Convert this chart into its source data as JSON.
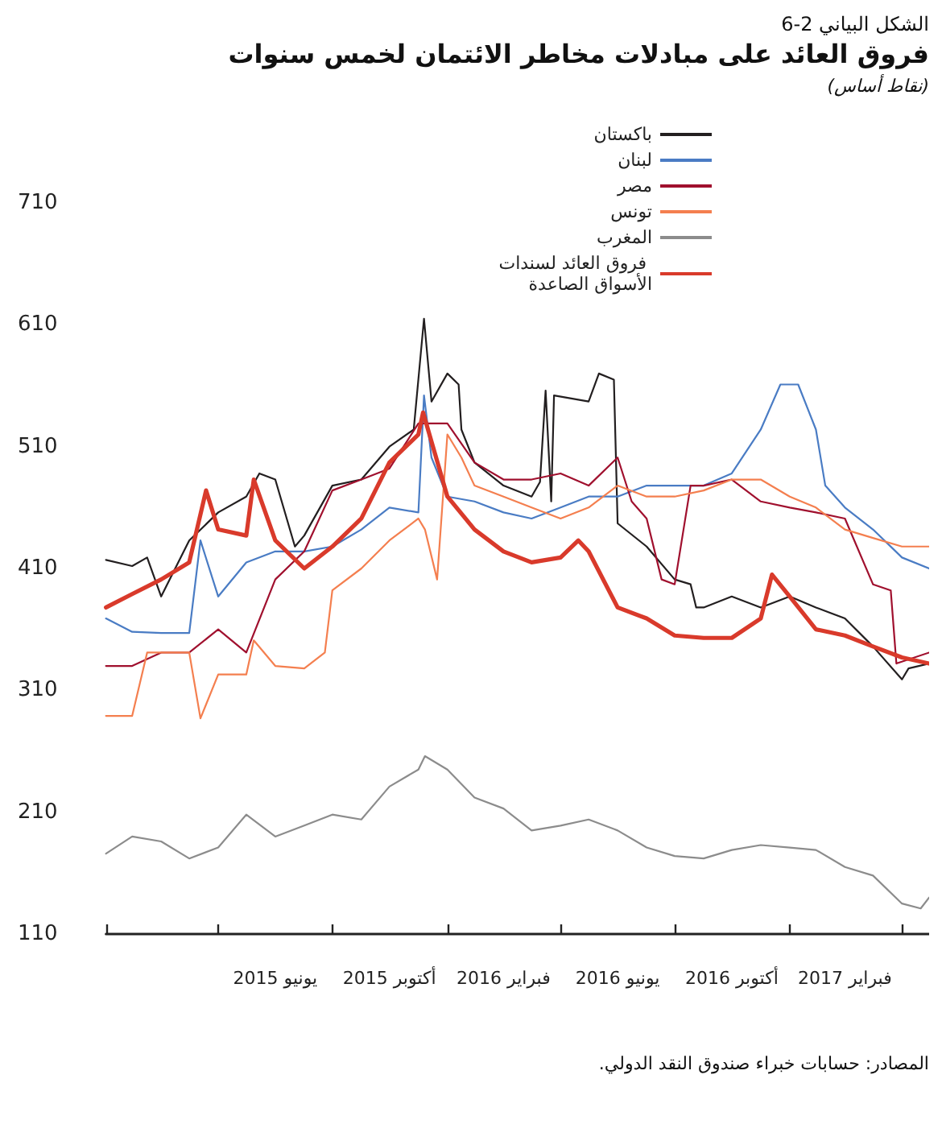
{
  "chart_data": {
    "type": "line",
    "title": "فروق العائد على مبادلات مخاطر الائتمان لخمس سنوات",
    "subtitle": "الشكل البياني 2-6",
    "annotations": [
      "(نقاط أساس)",
      "المصادر: حسابات خبراء صندوق النقد الدولي."
    ],
    "xlim": [
      "2015-02-01",
      "2017-06-30"
    ],
    "xticks": [
      {
        "value": "2015-02-01",
        "label": null
      },
      {
        "value": "2015-06-01",
        "label": null
      },
      {
        "value": "2015-10-01",
        "label": null
      },
      {
        "value": "2016-02-01",
        "label": null
      },
      {
        "value": "2016-06-01",
        "label": null
      },
      {
        "value": "2016-10-01",
        "label": null
      },
      {
        "value": "2017-02-01",
        "label": null
      },
      {
        "value": "2017-06-01",
        "label": null
      },
      {
        "value": "2015-08-01",
        "label": "يونيو 2015"
      },
      {
        "value": "2015-12-01",
        "label": "أكتوبر 2015"
      },
      {
        "value": "2016-04-01",
        "label": "فبراير 2016"
      },
      {
        "value": "2016-08-01",
        "label": "يونيو 2016"
      },
      {
        "value": "2016-12-01",
        "label": "أكتوبر 2016"
      },
      {
        "value": "2017-04-01",
        "label": "فبراير 2017"
      }
    ],
    "ylim": [
      110,
      710
    ],
    "yticks": [
      110,
      210,
      310,
      410,
      510,
      610,
      710
    ],
    "grid": false,
    "legend": "top",
    "marker": "none",
    "line_style": "solid",
    "series": [
      {
        "name": "باكستان",
        "color": "#231f20",
        "x": [
          "2015-02-01",
          "2015-03-01",
          "2015-03-17",
          "2015-04-01",
          "2015-05-01",
          "2015-06-01",
          "2015-07-01",
          "2015-07-15",
          "2015-08-01",
          "2015-08-22",
          "2015-09-01",
          "2015-10-01",
          "2015-11-01",
          "2015-12-01",
          "2015-12-27",
          "2016-01-07",
          "2016-01-15",
          "2016-02-01",
          "2016-02-13",
          "2016-02-16",
          "2016-03-01",
          "2016-04-01",
          "2016-05-01",
          "2016-05-10",
          "2016-05-16",
          "2016-05-22",
          "2016-05-25",
          "2016-07-01",
          "2016-07-12",
          "2016-07-28",
          "2016-08-01",
          "2016-09-01",
          "2016-10-01",
          "2016-10-18",
          "2016-10-24",
          "2016-11-01",
          "2016-12-01",
          "2017-01-01",
          "2017-02-01",
          "2017-03-01",
          "2017-04-01",
          "2017-05-01",
          "2017-06-01",
          "2017-06-08",
          "2017-06-30"
        ],
        "values": [
          417,
          412,
          419,
          387,
          433,
          456,
          469,
          488,
          483,
          428,
          437,
          478,
          483,
          510,
          524,
          615,
          547,
          570,
          561,
          524,
          497,
          478,
          469,
          481,
          556,
          465,
          552,
          547,
          570,
          565,
          447,
          428,
          401,
          397,
          378,
          378,
          387,
          378,
          387,
          378,
          369,
          346,
          319,
          328,
          332
        ]
      },
      {
        "name": "لبنان",
        "color": "#4a7cc4",
        "x": [
          "2015-02-01",
          "2015-03-01",
          "2015-04-01",
          "2015-05-01",
          "2015-05-13",
          "2015-06-01",
          "2015-07-01",
          "2015-08-01",
          "2015-09-01",
          "2015-10-01",
          "2015-11-01",
          "2015-12-01",
          "2016-01-01",
          "2016-01-07",
          "2016-01-15",
          "2016-02-01",
          "2016-03-01",
          "2016-04-01",
          "2016-05-01",
          "2016-06-01",
          "2016-07-01",
          "2016-08-01",
          "2016-09-01",
          "2016-10-01",
          "2016-11-01",
          "2016-12-01",
          "2017-01-01",
          "2017-01-22",
          "2017-02-10",
          "2017-03-01",
          "2017-03-11",
          "2017-04-01",
          "2017-05-01",
          "2017-06-01",
          "2017-06-30"
        ],
        "values": [
          369,
          358,
          357,
          357,
          433,
          387,
          415,
          424,
          424,
          428,
          442,
          460,
          456,
          552,
          501,
          469,
          465,
          456,
          451,
          460,
          469,
          469,
          478,
          478,
          478,
          488,
          524,
          561,
          561,
          524,
          478,
          460,
          442,
          419,
          410
        ]
      },
      {
        "name": "مصر",
        "color": "#a0102e",
        "x": [
          "2015-02-01",
          "2015-03-01",
          "2015-04-01",
          "2015-05-01",
          "2015-06-01",
          "2015-07-01",
          "2015-08-01",
          "2015-09-01",
          "2015-10-01",
          "2015-11-01",
          "2015-12-01",
          "2016-01-01",
          "2016-02-01",
          "2016-03-01",
          "2016-04-01",
          "2016-05-01",
          "2016-06-01",
          "2016-07-01",
          "2016-08-01",
          "2016-08-16",
          "2016-09-01",
          "2016-09-17",
          "2016-10-01",
          "2016-10-18",
          "2016-11-01",
          "2016-12-01",
          "2017-01-01",
          "2017-02-01",
          "2017-03-01",
          "2017-04-01",
          "2017-05-01",
          "2017-05-20",
          "2017-05-26",
          "2017-06-30"
        ],
        "values": [
          330,
          330,
          341,
          341,
          360,
          341,
          401,
          424,
          474,
          483,
          492,
          529,
          529,
          497,
          483,
          483,
          488,
          478,
          501,
          465,
          451,
          401,
          397,
          478,
          478,
          483,
          465,
          460,
          456,
          451,
          397,
          392,
          332,
          341
        ]
      },
      {
        "name": "تونس",
        "color": "#f47f4f",
        "x": [
          "2015-02-01",
          "2015-03-01",
          "2015-03-17",
          "2015-05-01",
          "2015-05-13",
          "2015-06-01",
          "2015-07-01",
          "2015-07-09",
          "2015-08-01",
          "2015-09-01",
          "2015-09-23",
          "2015-10-01",
          "2015-11-01",
          "2015-12-01",
          "2016-01-01",
          "2016-01-08",
          "2016-01-21",
          "2016-02-01",
          "2016-02-16",
          "2016-03-01",
          "2016-04-01",
          "2016-05-01",
          "2016-06-01",
          "2016-07-01",
          "2016-08-01",
          "2016-09-01",
          "2016-10-01",
          "2016-11-01",
          "2016-12-01",
          "2017-01-01",
          "2017-02-01",
          "2017-03-01",
          "2017-04-01",
          "2017-05-01",
          "2017-06-01",
          "2017-06-30"
        ],
        "values": [
          289,
          289,
          341,
          341,
          287,
          323,
          323,
          351,
          330,
          328,
          341,
          392,
          410,
          433,
          451,
          442,
          401,
          520,
          501,
          478,
          469,
          460,
          451,
          460,
          478,
          469,
          469,
          474,
          483,
          483,
          469,
          460,
          442,
          435,
          428,
          428
        ]
      },
      {
        "name": "المغرب",
        "color": "#8c8c8c",
        "x": [
          "2015-02-01",
          "2015-03-01",
          "2015-04-01",
          "2015-05-01",
          "2015-06-01",
          "2015-07-01",
          "2015-08-01",
          "2015-09-01",
          "2015-10-01",
          "2015-11-01",
          "2015-12-01",
          "2016-01-01",
          "2016-01-08",
          "2016-02-01",
          "2016-03-01",
          "2016-04-01",
          "2016-05-01",
          "2016-06-01",
          "2016-07-01",
          "2016-08-01",
          "2016-09-01",
          "2016-10-01",
          "2016-11-01",
          "2016-12-01",
          "2017-01-01",
          "2017-02-01",
          "2017-03-01",
          "2017-04-01",
          "2017-05-01",
          "2017-06-01",
          "2017-06-21",
          "2017-06-30"
        ],
        "values": [
          176,
          190,
          186,
          172,
          181,
          208,
          190,
          199,
          208,
          204,
          231,
          245,
          256,
          245,
          222,
          213,
          195,
          199,
          204,
          195,
          181,
          174,
          172,
          179,
          183,
          181,
          179,
          165,
          158,
          135,
          131,
          140
        ]
      },
      {
        "name": "فروق العائد لسندات الأسواق الصاعدة",
        "color": "#d93a2b",
        "x": [
          "2015-02-01",
          "2015-03-01",
          "2015-04-01",
          "2015-05-01",
          "2015-05-19",
          "2015-06-01",
          "2015-07-01",
          "2015-07-09",
          "2015-08-01",
          "2015-09-01",
          "2015-10-01",
          "2015-11-01",
          "2015-12-01",
          "2016-01-01",
          "2016-01-06",
          "2016-02-01",
          "2016-03-01",
          "2016-04-01",
          "2016-05-01",
          "2016-06-01",
          "2016-06-20",
          "2016-07-01",
          "2016-08-01",
          "2016-09-01",
          "2016-10-01",
          "2016-11-01",
          "2016-12-01",
          "2017-01-01",
          "2017-01-13",
          "2017-02-01",
          "2017-03-01",
          "2017-04-01",
          "2017-05-01",
          "2017-06-01",
          "2017-06-30"
        ],
        "values": [
          378,
          389,
          401,
          415,
          474,
          442,
          437,
          483,
          433,
          410,
          428,
          451,
          497,
          520,
          538,
          469,
          442,
          424,
          415,
          419,
          433,
          424,
          378,
          369,
          355,
          353,
          353,
          369,
          405,
          387,
          360,
          355,
          346,
          337,
          332
        ]
      }
    ]
  }
}
